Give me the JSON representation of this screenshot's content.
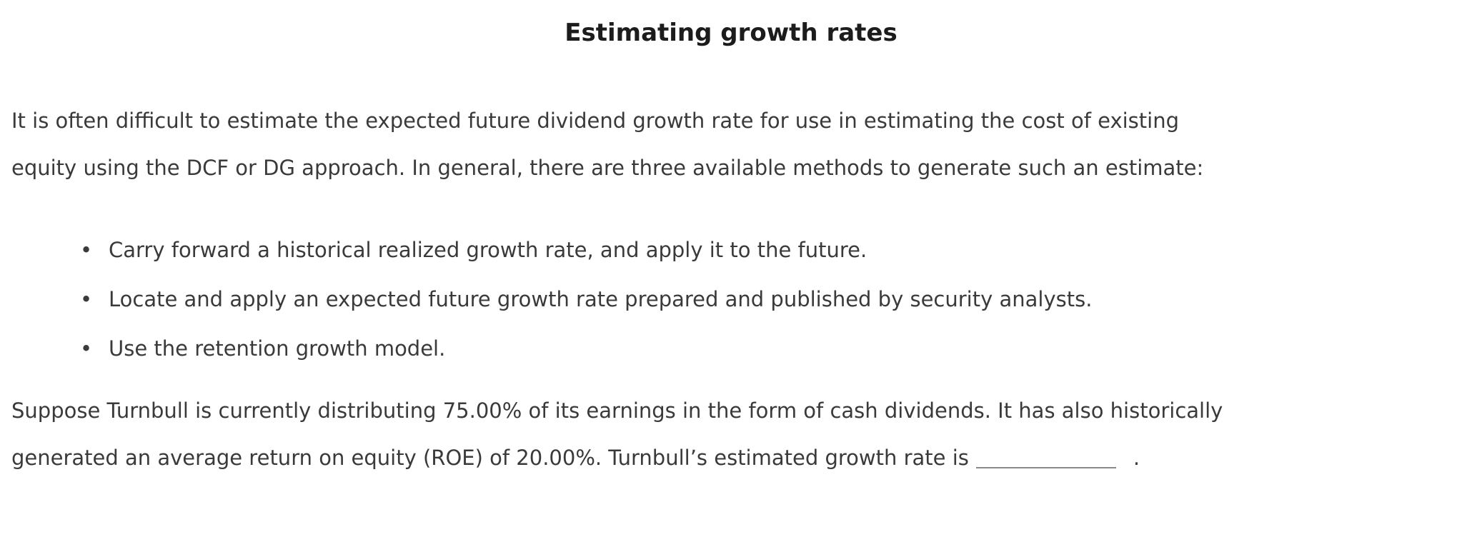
{
  "title": "Estimating growth rates",
  "intro": {
    "lines": [
      "It is often difficult to estimate the expected future dividend growth rate for use in estimating the cost of existing",
      "equity using the DCF or DG approach. In general, there are three available methods to generate such an estimate:"
    ]
  },
  "methods": {
    "bullet_glyph": "•",
    "items": [
      "Carry forward a historical realized growth rate, and apply it to the future.",
      "Locate and apply an expected future growth rate prepared and published by security analysts.",
      "Use the retention growth model."
    ]
  },
  "question": {
    "line1": "Suppose Turnbull is currently distributing 75.00% of its earnings in the form of cash dividends. It has also historically",
    "line2_before_blank": "generated an average return on equity (ROE) of 20.00%. Turnbull’s estimated growth rate is",
    "blank_value": "",
    "line2_after_blank": "."
  },
  "colors": {
    "background": "#ffffff",
    "body_text": "#3a3a3a",
    "title_text": "#1c1c1c",
    "blank_underline": "#8a8a8a"
  }
}
